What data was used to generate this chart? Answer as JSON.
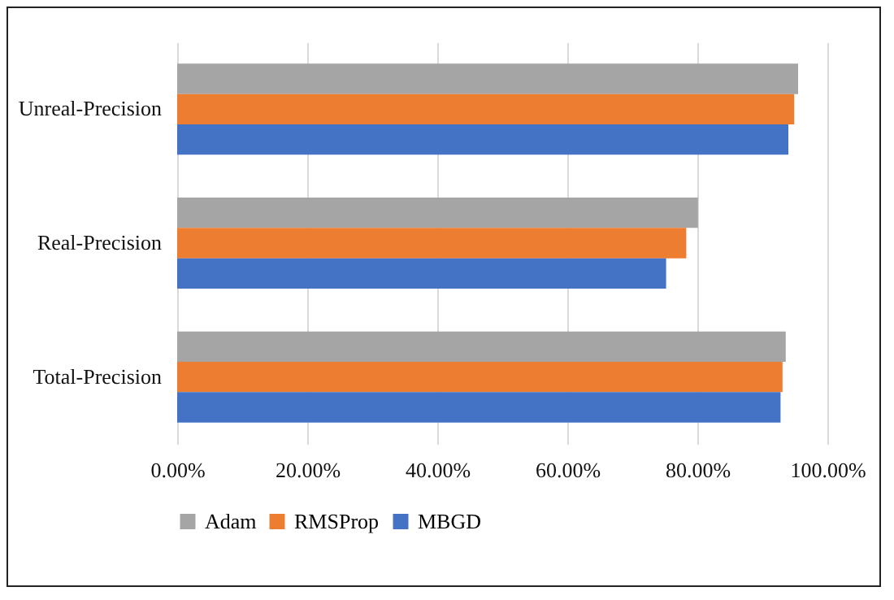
{
  "chart_data": {
    "type": "bar",
    "orientation": "horizontal",
    "categories": [
      "Unreal-Precision",
      "Real-Precision",
      "Total-Precision"
    ],
    "series": [
      {
        "name": "Adam",
        "color": "#a5a5a5",
        "values": [
          95.5,
          80.1,
          93.6
        ]
      },
      {
        "name": "RMSProp",
        "color": "#ed7d31",
        "values": [
          94.9,
          78.3,
          93.1
        ]
      },
      {
        "name": "MBGD",
        "color": "#4472c4",
        "values": [
          94.0,
          75.2,
          92.8
        ]
      }
    ],
    "xlim": [
      0,
      100
    ],
    "xticks": [
      {
        "value": 0,
        "label": "0.00%"
      },
      {
        "value": 20,
        "label": "20.00%"
      },
      {
        "value": 40,
        "label": "40.00%"
      },
      {
        "value": 60,
        "label": "60.00%"
      },
      {
        "value": 80,
        "label": "80.00%"
      },
      {
        "value": 100,
        "label": "100.00%"
      }
    ],
    "grid": "x",
    "legend": "bottom"
  }
}
